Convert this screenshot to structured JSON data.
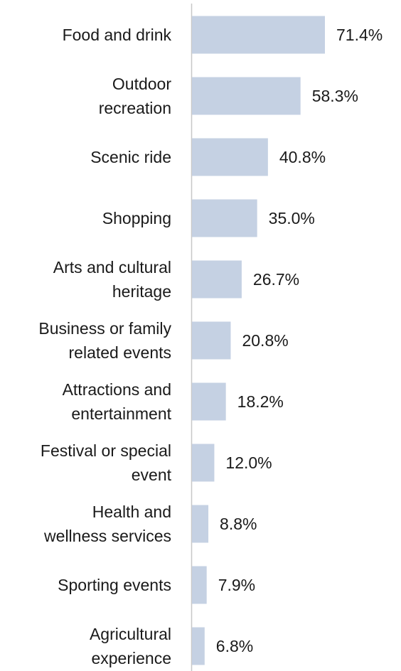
{
  "chart_data": {
    "type": "bar",
    "orientation": "horizontal",
    "categories": [
      "Food and drink",
      "Outdoor\nrecreation",
      "Scenic ride",
      "Shopping",
      "Arts and cultural\nheritage",
      "Business or family\nrelated events",
      "Attractions and\nentertainment",
      "Festival or special\nevent",
      "Health and\nwellness services",
      "Sporting events",
      "Agricultural\nexperience"
    ],
    "values": [
      71.4,
      58.3,
      40.8,
      35.0,
      26.7,
      20.8,
      18.2,
      12.0,
      8.8,
      7.9,
      6.8
    ],
    "value_labels": [
      "71.4%",
      "58.3%",
      "40.8%",
      "35.0%",
      "26.7%",
      "20.8%",
      "18.2%",
      "12.0%",
      "8.8%",
      "7.9%",
      "6.8%"
    ],
    "color": "#c5d1e3"
  }
}
